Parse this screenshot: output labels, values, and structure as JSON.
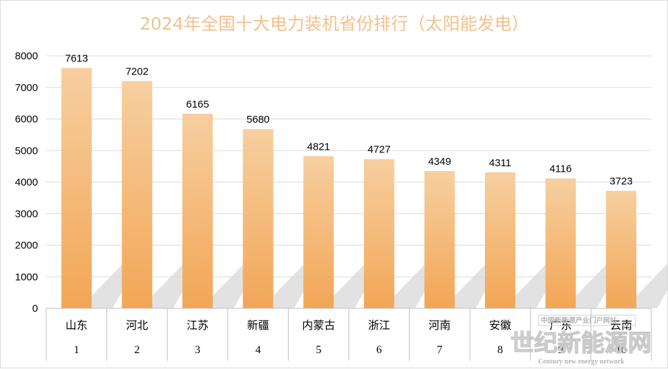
{
  "chart_data": {
    "type": "bar",
    "title": "2024年全国十大电力装机省份排行（太阳能发电）",
    "categories": [
      "山东",
      "河北",
      "江苏",
      "新疆",
      "内蒙古",
      "浙江",
      "河南",
      "安徽",
      "广东",
      "云南"
    ],
    "ranks": [
      "1",
      "2",
      "3",
      "4",
      "5",
      "6",
      "7",
      "8",
      "9",
      "10"
    ],
    "values": [
      7613,
      7202,
      6165,
      5680,
      4821,
      4727,
      4349,
      4311,
      4116,
      3723
    ],
    "ylim": [
      0,
      8000
    ],
    "yticks": [
      "0",
      "1000",
      "2000",
      "3000",
      "4000",
      "5000",
      "6000",
      "7000",
      "8000"
    ],
    "grid": true,
    "bar_color_top": "#f7cfa0",
    "bar_color_bottom": "#f2a656",
    "title_color": "#f2c08c"
  },
  "watermark": {
    "text": "世纪新能源网",
    "subtext": "Century new energy network",
    "badge": "中国新能源产业门户网站"
  }
}
